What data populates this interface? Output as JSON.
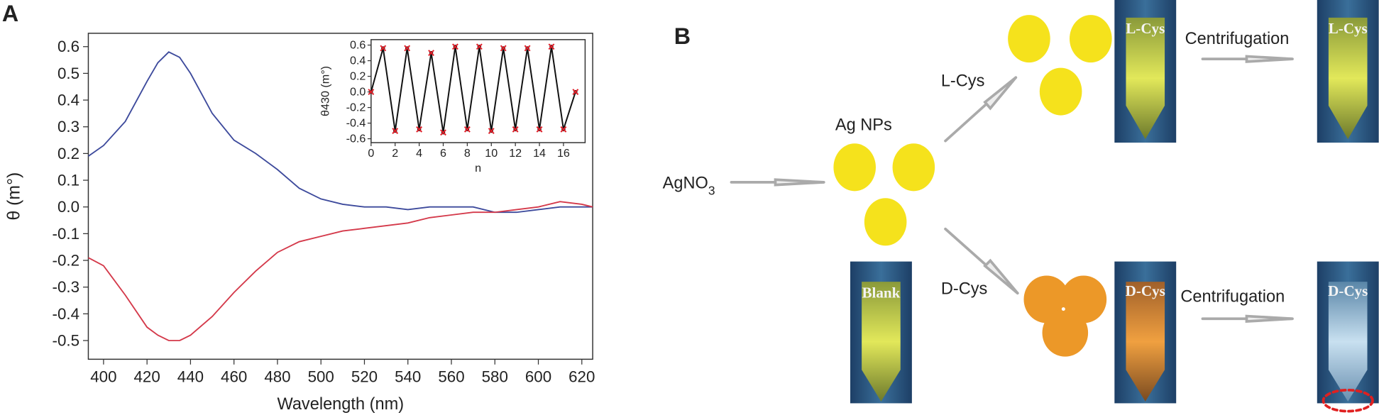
{
  "panel_labels": [
    "A",
    "B"
  ],
  "chart_data": [
    {
      "type": "line",
      "xlabel": "Wavelength (nm)",
      "ylabel": "θ (m°)",
      "x": [
        393,
        400,
        410,
        420,
        425,
        430,
        435,
        440,
        450,
        460,
        470,
        480,
        490,
        500,
        510,
        520,
        530,
        540,
        550,
        560,
        570,
        580,
        590,
        600,
        610,
        620,
        625
      ],
      "series": [
        {
          "color": "#3d4a9c",
          "values": [
            0.19,
            0.23,
            0.32,
            0.47,
            0.54,
            0.58,
            0.56,
            0.5,
            0.35,
            0.25,
            0.2,
            0.14,
            0.07,
            0.03,
            0.01,
            0.0,
            0.0,
            -0.01,
            0.0,
            0.0,
            0.0,
            -0.02,
            -0.02,
            -0.01,
            0.0,
            0.0,
            0.0
          ]
        },
        {
          "color": "#d4394a",
          "values": [
            -0.19,
            -0.22,
            -0.33,
            -0.45,
            -0.48,
            -0.5,
            -0.5,
            -0.48,
            -0.41,
            -0.32,
            -0.24,
            -0.17,
            -0.13,
            -0.11,
            -0.09,
            -0.08,
            -0.07,
            -0.06,
            -0.04,
            -0.03,
            -0.02,
            -0.02,
            -0.01,
            0.0,
            0.02,
            0.01,
            0.0
          ]
        }
      ],
      "xlim": [
        393,
        625
      ],
      "ylim": [
        -0.57,
        0.65
      ],
      "xticks": [
        400,
        420,
        440,
        460,
        480,
        500,
        520,
        540,
        560,
        580,
        600,
        620
      ],
      "yticks": [
        -0.5,
        -0.4,
        -0.3,
        -0.2,
        -0.1,
        {
          "value": 0,
          "label": "0.0"
        },
        0.1,
        0.2,
        0.3,
        0.4,
        0.5,
        0.6
      ]
    },
    {
      "type": "line",
      "xlabel": "n",
      "ylabel": "θ430 (m°)",
      "x": [
        0,
        1,
        2,
        3,
        4,
        5,
        6,
        7,
        8,
        9,
        10,
        11,
        12,
        13,
        14,
        15,
        16,
        17
      ],
      "series": [
        {
          "color": "#111111",
          "marker_color": "#e0202a",
          "values": [
            0.0,
            0.56,
            -0.5,
            0.56,
            -0.48,
            0.5,
            -0.52,
            0.58,
            -0.48,
            0.58,
            -0.5,
            0.56,
            -0.48,
            0.56,
            -0.48,
            0.58,
            -0.48,
            0.0
          ]
        }
      ],
      "xlim": [
        0,
        17.8
      ],
      "ylim": [
        -0.65,
        0.67
      ],
      "xticks": [
        0,
        2,
        4,
        6,
        8,
        10,
        12,
        14,
        16
      ],
      "yticks": [
        -0.6,
        -0.4,
        -0.2,
        {
          "value": 0,
          "label": "0.0"
        },
        0.2,
        0.4,
        0.6
      ]
    }
  ],
  "diagram": {
    "reactant": {
      "text": "AgNO",
      "subscript": "3"
    },
    "intermediate": "Ag NPs",
    "blank_tube": "Blank",
    "branches": [
      {
        "reagent": "L-Cys",
        "tube_before": "L-Cys",
        "process": "Centrifugation",
        "tube_after": "L-Cys"
      },
      {
        "reagent": "D-Cys",
        "tube_before": "D-Cys",
        "process": "Centrifugation",
        "tube_after": "D-Cys"
      }
    ]
  }
}
